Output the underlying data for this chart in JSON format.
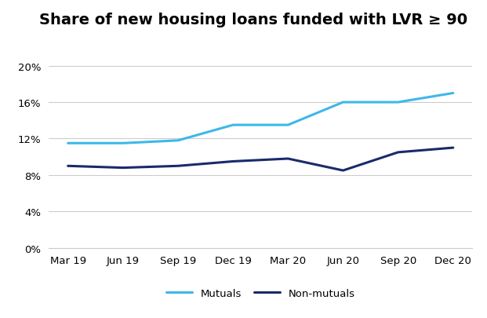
{
  "title": "Share of new housing loans funded with LVR ≥ 90",
  "x_labels": [
    "Mar 19",
    "Jun 19",
    "Sep 19",
    "Dec 19",
    "Mar 20",
    "Jun 20",
    "Sep 20",
    "Dec 20"
  ],
  "mutuals": [
    11.5,
    11.5,
    11.8,
    13.5,
    13.5,
    16.0,
    16.0,
    17.0
  ],
  "non_mutuals": [
    9.0,
    8.8,
    9.0,
    9.5,
    9.8,
    8.5,
    10.5,
    11.0
  ],
  "mutuals_color": "#3db8e8",
  "non_mutuals_color": "#1a2a6c",
  "ylim": [
    0,
    21
  ],
  "yticks": [
    0,
    4,
    8,
    12,
    16,
    20
  ],
  "line_width": 2.2,
  "background_color": "#ffffff",
  "grid_color": "#cccccc",
  "title_fontsize": 14,
  "tick_fontsize": 9.5,
  "legend_labels": [
    "Mutuals",
    "Non-mutuals"
  ]
}
